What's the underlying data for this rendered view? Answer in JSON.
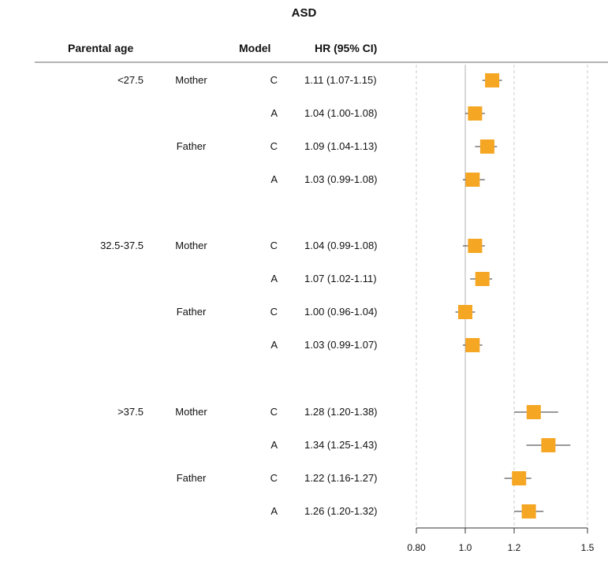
{
  "chart_data": {
    "type": "forest",
    "title": "ASD",
    "headers": {
      "parental_age": "Parental age",
      "model": "Model",
      "hr": "HR (95% CI)"
    },
    "xlim": [
      0.8,
      1.5
    ],
    "ticks": [
      {
        "value": 0.8,
        "label": "0.80"
      },
      {
        "value": 1.0,
        "label": "1.0"
      },
      {
        "value": 1.2,
        "label": "1.2"
      },
      {
        "value": 1.5,
        "label": "1.5"
      }
    ],
    "reference_line": 1.0,
    "rows": [
      {
        "age": "<27.5",
        "parent": "Mother",
        "model": "C",
        "hr_text": "1.11 (1.07-1.15)",
        "hr": 1.11,
        "lo": 1.07,
        "hi": 1.15
      },
      {
        "age": "",
        "parent": "",
        "model": "A",
        "hr_text": "1.04 (1.00-1.08)",
        "hr": 1.04,
        "lo": 1.0,
        "hi": 1.08
      },
      {
        "age": "",
        "parent": "Father",
        "model": "C",
        "hr_text": "1.09 (1.04-1.13)",
        "hr": 1.09,
        "lo": 1.04,
        "hi": 1.13
      },
      {
        "age": "",
        "parent": "",
        "model": "A",
        "hr_text": "1.03 (0.99-1.08)",
        "hr": 1.03,
        "lo": 0.99,
        "hi": 1.08
      },
      {
        "age": "32.5-37.5",
        "parent": "Mother",
        "model": "C",
        "hr_text": "1.04 (0.99-1.08)",
        "hr": 1.04,
        "lo": 0.99,
        "hi": 1.08
      },
      {
        "age": "",
        "parent": "",
        "model": "A",
        "hr_text": "1.07 (1.02-1.11)",
        "hr": 1.07,
        "lo": 1.02,
        "hi": 1.11
      },
      {
        "age": "",
        "parent": "Father",
        "model": "C",
        "hr_text": "1.00 (0.96-1.04)",
        "hr": 1.0,
        "lo": 0.96,
        "hi": 1.04
      },
      {
        "age": "",
        "parent": "",
        "model": "A",
        "hr_text": "1.03 (0.99-1.07)",
        "hr": 1.03,
        "lo": 0.99,
        "hi": 1.07
      },
      {
        "age": ">37.5",
        "parent": "Mother",
        "model": "C",
        "hr_text": "1.28 (1.20-1.38)",
        "hr": 1.28,
        "lo": 1.2,
        "hi": 1.38
      },
      {
        "age": "",
        "parent": "",
        "model": "A",
        "hr_text": "1.34 (1.25-1.43)",
        "hr": 1.34,
        "lo": 1.25,
        "hi": 1.43
      },
      {
        "age": "",
        "parent": "Father",
        "model": "C",
        "hr_text": "1.22 (1.16-1.27)",
        "hr": 1.22,
        "lo": 1.16,
        "hi": 1.27
      },
      {
        "age": "",
        "parent": "",
        "model": "A",
        "hr_text": "1.26 (1.20-1.32)",
        "hr": 1.26,
        "lo": 1.2,
        "hi": 1.32
      }
    ],
    "marker_color": "#f5a623",
    "ci_color": "#333333",
    "grid_color": "#cccccc",
    "ref_color": "#b0b0b0"
  }
}
